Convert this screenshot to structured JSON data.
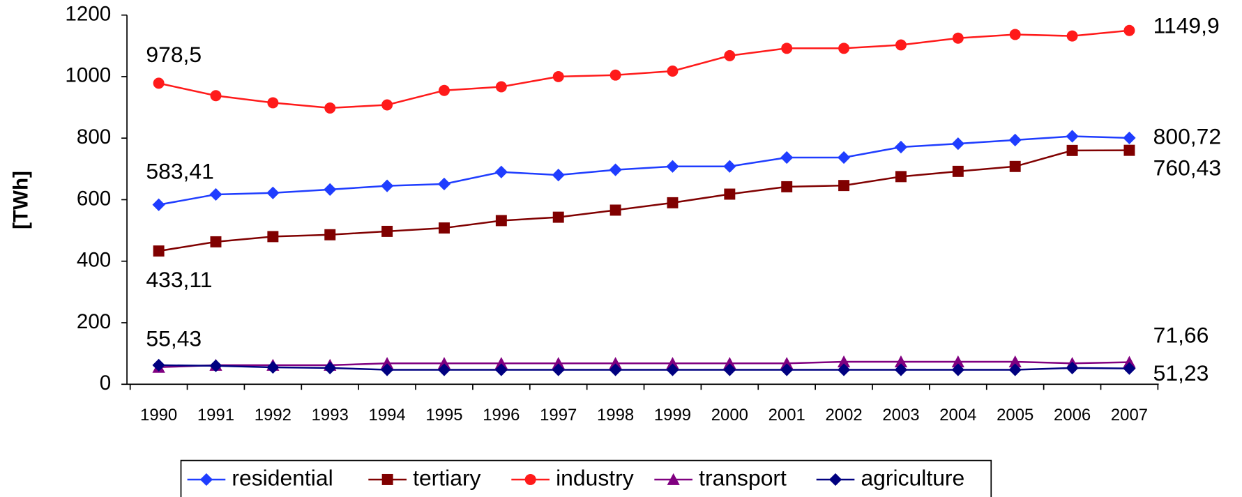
{
  "chart_data": {
    "type": "line",
    "y_label": "[TWh]",
    "categories": [
      "1990",
      "1991",
      "1992",
      "1993",
      "1994",
      "1995",
      "1996",
      "1997",
      "1998",
      "1999",
      "2000",
      "2001",
      "2002",
      "2003",
      "2004",
      "2005",
      "2006",
      "2007"
    ],
    "ylim": [
      0,
      1200
    ],
    "yticks": [
      0,
      200,
      400,
      600,
      800,
      1000,
      1200
    ],
    "legend": "bottom",
    "series": [
      {
        "name": "residential",
        "color": "#1f3dff",
        "marker": "diamond",
        "values": [
          583.41,
          617,
          622,
          633,
          645,
          651,
          690,
          680,
          697,
          708,
          708,
          737,
          737,
          771,
          782,
          794,
          806,
          800.72
        ],
        "value_labels": [
          "583,41",
          null,
          null,
          null,
          null,
          null,
          null,
          null,
          null,
          null,
          null,
          null,
          null,
          null,
          null,
          null,
          null,
          "800,72"
        ]
      },
      {
        "name": "tertiary",
        "color": "#800000",
        "marker": "square",
        "values": [
          433.11,
          463,
          480,
          486,
          497,
          508,
          532,
          543,
          566,
          590,
          618,
          642,
          646,
          675,
          692,
          708,
          760,
          760.43
        ],
        "value_labels": [
          "433,11",
          null,
          null,
          null,
          null,
          null,
          null,
          null,
          null,
          null,
          null,
          null,
          null,
          null,
          null,
          null,
          null,
          "760,43"
        ]
      },
      {
        "name": "industry",
        "color": "#ff1a1a",
        "marker": "circle",
        "values": [
          978.5,
          938,
          915,
          898,
          908,
          955,
          967,
          1000,
          1005,
          1018,
          1068,
          1092,
          1092,
          1103,
          1125,
          1137,
          1132,
          1149.9
        ],
        "value_labels": [
          "978,5",
          null,
          null,
          null,
          null,
          null,
          null,
          null,
          null,
          null,
          null,
          null,
          null,
          null,
          null,
          null,
          null,
          "1149,9"
        ]
      },
      {
        "name": "transport",
        "color": "#800080",
        "marker": "triangle",
        "values": [
          55.43,
          62,
          62,
          62,
          68,
          68,
          68,
          68,
          68,
          68,
          68,
          68,
          73,
          73,
          73,
          73,
          68,
          71.66
        ],
        "value_labels": [
          "55,43",
          null,
          null,
          null,
          null,
          null,
          null,
          null,
          null,
          null,
          null,
          null,
          null,
          null,
          null,
          null,
          null,
          "71,66"
        ]
      },
      {
        "name": "agriculture",
        "color": "#000080",
        "marker": "diamond",
        "values": [
          62,
          60,
          55,
          53,
          47,
          47,
          47,
          47,
          47,
          47,
          47,
          47,
          47,
          47,
          47,
          47,
          53,
          51.23
        ],
        "value_labels": [
          null,
          null,
          null,
          null,
          null,
          null,
          null,
          null,
          null,
          null,
          null,
          null,
          null,
          null,
          null,
          null,
          null,
          "51,23"
        ]
      }
    ]
  }
}
